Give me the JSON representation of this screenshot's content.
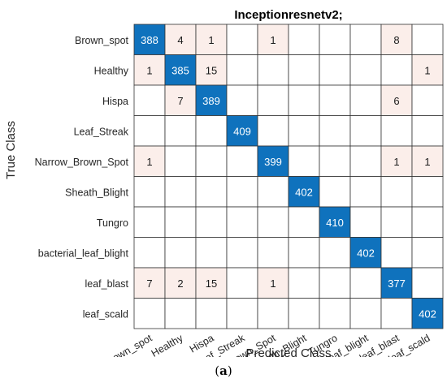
{
  "chart_data": {
    "type": "heatmap",
    "title": "Inceptionresnetv2;",
    "xlabel": "Predicted Class",
    "ylabel": "True Class",
    "classes": [
      "Brown_spot",
      "Healthy",
      "Hispa",
      "Leaf_Streak",
      "Narrow_Brown_Spot",
      "Sheath_Blight",
      "Tungro",
      "bacterial_leaf_blight",
      "leaf_blast",
      "leaf_scald"
    ],
    "matrix": [
      [
        388,
        4,
        1,
        0,
        1,
        0,
        0,
        0,
        8,
        0
      ],
      [
        1,
        385,
        15,
        0,
        0,
        0,
        0,
        0,
        0,
        1
      ],
      [
        0,
        7,
        389,
        0,
        0,
        0,
        0,
        0,
        6,
        0
      ],
      [
        0,
        0,
        0,
        409,
        0,
        0,
        0,
        0,
        0,
        0
      ],
      [
        1,
        0,
        0,
        0,
        399,
        0,
        0,
        0,
        1,
        1
      ],
      [
        0,
        0,
        0,
        0,
        0,
        402,
        0,
        0,
        0,
        0
      ],
      [
        0,
        0,
        0,
        0,
        0,
        0,
        410,
        0,
        0,
        0
      ],
      [
        0,
        0,
        0,
        0,
        0,
        0,
        0,
        402,
        0,
        0
      ],
      [
        7,
        2,
        15,
        0,
        1,
        0,
        0,
        0,
        377,
        0
      ],
      [
        0,
        0,
        0,
        0,
        0,
        0,
        0,
        0,
        0,
        402
      ]
    ],
    "colors": {
      "diagonal": "#0f72bd",
      "offdiagonal": "#fbeeea",
      "empty": "#ffffff",
      "grid": "#333333"
    }
  },
  "caption": {
    "open": "(",
    "label": "a",
    "close": ")"
  }
}
